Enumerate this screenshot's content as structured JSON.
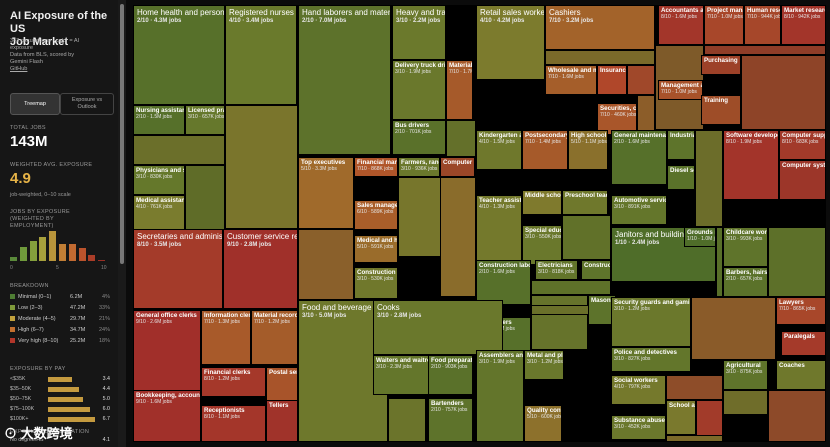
{
  "app": {
    "title_line1": "AI Exposure of the US",
    "title_line2": "Job Market",
    "desc_line1": "342 occupations · color = AI",
    "desc_line2": "exposure",
    "desc_line3": "Data from BLS, scored by",
    "desc_line4": "Gemini Flash",
    "github": "GitHub"
  },
  "view_buttons": {
    "treemap": "Treemap",
    "exposure_line1": "Exposure vs",
    "exposure_line2": "Outlook"
  },
  "stats": {
    "total_label": "TOTAL JOBS",
    "total_value": "143M",
    "avg_label": "WEIGHTED AVG. EXPOSURE",
    "avg_value": "4.9",
    "avg_sub": "job-weighted, 0–10 scale",
    "hist_label_1": "JOBS BY EXPOSURE",
    "hist_label_2": "(WEIGHTED BY",
    "hist_label_3": "EMPLOYMENT)",
    "axis_0": "0",
    "axis_5": "5",
    "axis_10": "10"
  },
  "histogram": [
    {
      "value": 0.6,
      "color": "#5a8a3a"
    },
    {
      "value": 2.0,
      "color": "#6f9a3b"
    },
    {
      "value": 2.9,
      "color": "#84a03c"
    },
    {
      "value": 3.4,
      "color": "#a7a03c"
    },
    {
      "value": 4.3,
      "color": "#b9953b"
    },
    {
      "value": 2.5,
      "color": "#c17e35"
    },
    {
      "value": 2.4,
      "color": "#c26a31"
    },
    {
      "value": 1.9,
      "color": "#bb532c"
    },
    {
      "value": 0.8,
      "color": "#aa3d28"
    },
    {
      "value": 0.2,
      "color": "#992f25"
    }
  ],
  "breakdown_label": "BREAKDOWN",
  "breakdown": [
    {
      "name": "Minimal (0–1)",
      "value": "6.2M",
      "pct": "4%",
      "color": "#4e7d33"
    },
    {
      "name": "Low (2–3)",
      "value": "47.2M",
      "pct": "33%",
      "color": "#7f9a3a"
    },
    {
      "name": "Moderate (4–5)",
      "value": "29.7M",
      "pct": "21%",
      "color": "#c2a23d"
    },
    {
      "name": "High (6–7)",
      "value": "34.7M",
      "pct": "24%",
      "color": "#c3702f"
    },
    {
      "name": "Very high (8–10)",
      "value": "25.2M",
      "pct": "18%",
      "color": "#b2362a"
    }
  ],
  "pay_label": "EXPOSURE BY PAY",
  "pay": [
    {
      "label": "<$35K",
      "value": "3.4",
      "frac": 0.34
    },
    {
      "label": "$35–50K",
      "value": "4.4",
      "frac": 0.44
    },
    {
      "label": "$50–75K",
      "value": "5.0",
      "frac": 0.5
    },
    {
      "label": "$75–100K",
      "value": "6.0",
      "frac": 0.6
    },
    {
      "label": "$100K+",
      "value": "6.7",
      "frac": 0.67
    }
  ],
  "edu_label": "EXPOSURE BY EDUCATION",
  "edu_row": {
    "label": "No degree/HS",
    "value": "4.1"
  },
  "watermark": "大数跨境",
  "treemap_cells": [
    {
      "name": "Home health and personal care aides",
      "info": "2/10 · 4.3M jobs",
      "color": "#57702a",
      "big": true
    },
    {
      "name": "Registered nurses",
      "info": "4/10 · 3.4M jobs",
      "color": "#6a7a2c",
      "big": true
    },
    {
      "name": "Nursing assistants",
      "info": "2/10 · 1.5M jobs",
      "color": "#56702a"
    },
    {
      "name": "Licensed practical nurses",
      "info": "3/10 · 657K jobs",
      "color": "#66782c"
    },
    {
      "name": "Physicians and surgeons",
      "info": "3/10 · 830K jobs",
      "color": "#65782b"
    },
    {
      "name": "Medical assistants",
      "info": "4/10 · 761K jobs",
      "color": "#7a7c2e"
    },
    {
      "name": "Hand laborers and material movers",
      "info": "2/10 · 7.0M jobs",
      "color": "#5d722b",
      "big": true
    },
    {
      "name": "Heavy and tractor-trailer truck drivers",
      "info": "3/10 · 2.2M jobs",
      "color": "#6b792c",
      "big": true
    },
    {
      "name": "Delivery truck drivers",
      "info": "3/10 · 1.9M jobs",
      "color": "#6a782c"
    },
    {
      "name": "Material recording clerks",
      "info": "7/10 · 1.7M jobs",
      "color": "#a65a2a"
    },
    {
      "name": "Bus drivers",
      "info": "2/10 · 701K jobs",
      "color": "#5a712a"
    },
    {
      "name": "Top executives",
      "info": "5/10 · 3.3M jobs",
      "color": "#a06a2b"
    },
    {
      "name": "Financial managers",
      "info": "7/10 · 868K jobs",
      "color": "#b0562a"
    },
    {
      "name": "Farmers, ranchers",
      "info": "3/10 · 936K jobs",
      "color": "#6a782c"
    },
    {
      "name": "Computer",
      "info": "",
      "color": "#9b4728"
    },
    {
      "name": "Sales managers",
      "info": "6/10 · 589K jobs",
      "color": "#a95e2a"
    },
    {
      "name": "Medical and health services managers",
      "info": "5/10 · 591K jobs",
      "color": "#9a6c2b"
    },
    {
      "name": "Construction managers",
      "info": "3/10 · 530K jobs",
      "color": "#70782c"
    },
    {
      "name": "Retail sales workers",
      "info": "4/10 · 4.2M jobs",
      "color": "#7c7b2d",
      "big": true
    },
    {
      "name": "Cashiers",
      "info": "7/10 · 3.2M jobs",
      "color": "#a3632a",
      "big": true
    },
    {
      "name": "Wholesale and manufacturing sales",
      "info": "7/10 · 1.6M jobs",
      "color": "#a55e2a"
    },
    {
      "name": "Insurance",
      "info": "",
      "color": "#b0472a"
    },
    {
      "name": "Securities, commodities",
      "info": "7/10 · 460K jobs",
      "color": "#a9562a"
    },
    {
      "name": "Accountants and auditors",
      "info": "8/10 · 1.6M jobs",
      "color": "#a3362a"
    },
    {
      "name": "Project management",
      "info": "7/10 · 1.0M jobs",
      "color": "#a8472a"
    },
    {
      "name": "Human resources",
      "info": "7/10 · 944K jobs",
      "color": "#a6472a"
    },
    {
      "name": "Market research",
      "info": "8/10 · 942K jobs",
      "color": "#a3352a"
    },
    {
      "name": "Purchasing",
      "info": "",
      "color": "#9d4128"
    },
    {
      "name": "Management analysts",
      "info": "7/10 · 1.0M jobs",
      "color": "#a8522a"
    },
    {
      "name": "Training",
      "info": "",
      "color": "#9e4d28"
    },
    {
      "name": "Kindergarten and elementary",
      "info": "4/10 · 1.5M jobs",
      "color": "#6f782c"
    },
    {
      "name": "Postsecondary teachers",
      "info": "7/10 · 1.4M jobs",
      "color": "#a65a2a"
    },
    {
      "name": "High school teachers",
      "info": "5/10 · 1.1M jobs",
      "color": "#8a702c"
    },
    {
      "name": "General maintenance",
      "info": "2/10 · 1.6M jobs",
      "color": "#56702a"
    },
    {
      "name": "Industrial",
      "info": "",
      "color": "#5e742b"
    },
    {
      "name": "Diesel service",
      "info": "",
      "color": "#5a722a"
    },
    {
      "name": "Automotive service technicians",
      "info": "3/10 · 891K jobs",
      "color": "#64762b"
    },
    {
      "name": "Software developers",
      "info": "8/10 · 1.9M jobs",
      "color": "#a3342a"
    },
    {
      "name": "Computer support",
      "info": "8/10 · 683K jobs",
      "color": "#a23a2a"
    },
    {
      "name": "Computer systems",
      "info": "",
      "color": "#9c3629"
    },
    {
      "name": "Teacher assistants",
      "info": "4/10 · 1.3M jobs",
      "color": "#74792c"
    },
    {
      "name": "Middle school",
      "info": "",
      "color": "#7f7a2d"
    },
    {
      "name": "Preschool teachers",
      "info": "",
      "color": "#6f782c"
    },
    {
      "name": "Special education",
      "info": "3/10 · 550K jobs",
      "color": "#6a782c"
    },
    {
      "name": "Janitors and building cleaners",
      "info": "1/10 · 2.4M jobs",
      "color": "#4f6d29",
      "big": true
    },
    {
      "name": "Grounds maintenance",
      "info": "1/10 · 1.0M jobs",
      "color": "#4f6d29"
    },
    {
      "name": "Childcare workers",
      "info": "3/10 · 993K jobs",
      "color": "#5f742b"
    },
    {
      "name": "Barbers, hairstylists",
      "info": "2/10 · 657K jobs",
      "color": "#5b722a"
    },
    {
      "name": "Secretaries and administrative assistants",
      "info": "8/10 · 3.5M jobs",
      "color": "#a43b2a",
      "big": true
    },
    {
      "name": "Customer service representatives",
      "info": "9/10 · 2.8M jobs",
      "color": "#a0302a",
      "big": true
    },
    {
      "name": "Construction laborers",
      "info": "2/10 · 1.6M jobs",
      "color": "#57702a"
    },
    {
      "name": "Electricians",
      "info": "3/10 · 818K jobs",
      "color": "#63752b"
    },
    {
      "name": "Construction",
      "info": "",
      "color": "#5e742b"
    },
    {
      "name": "Masonry",
      "info": "",
      "color": "#5d732b"
    },
    {
      "name": "Carpenters",
      "info": "2/10 · 1.0M jobs",
      "color": "#57702a"
    },
    {
      "name": "Security guards and gaming",
      "info": "3/10 · 1.2M jobs",
      "color": "#6b782c"
    },
    {
      "name": "Police and detectives",
      "info": "3/10 · 827K jobs",
      "color": "#63762b"
    },
    {
      "name": "Lawyers",
      "info": "7/10 · 865K jobs",
      "color": "#a8472a"
    },
    {
      "name": "Paralegals",
      "info": "",
      "color": "#a53a2a"
    },
    {
      "name": "Social workers",
      "info": "4/10 · 797K jobs",
      "color": "#75792c"
    },
    {
      "name": "School and",
      "info": "",
      "color": "#7a792d"
    },
    {
      "name": "Agricultural",
      "info": "3/10 · 875K jobs",
      "color": "#5f742b"
    },
    {
      "name": "Coaches",
      "info": "",
      "color": "#6f782c"
    },
    {
      "name": "Substance abuse",
      "info": "3/10 · 452K jobs",
      "color": "#6b782c"
    },
    {
      "name": "General office clerks",
      "info": "9/10 · 2.6M jobs",
      "color": "#a12f2a"
    },
    {
      "name": "Information clerks",
      "info": "7/10 · 1.3M jobs",
      "color": "#a85a2a"
    },
    {
      "name": "Material recording",
      "info": "7/10 · 1.2M jobs",
      "color": "#a45c2a"
    },
    {
      "name": "Financial clerks",
      "info": "8/10 · 1.2M jobs",
      "color": "#a5382a"
    },
    {
      "name": "Postal service",
      "info": "",
      "color": "#a8542a"
    },
    {
      "name": "Bookkeeping, accounting",
      "info": "9/10 · 1.6M jobs",
      "color": "#a1302a"
    },
    {
      "name": "Receptionists",
      "info": "8/10 · 1.1M jobs",
      "color": "#a4362a"
    },
    {
      "name": "Tellers",
      "info": "",
      "color": "#a0332a"
    },
    {
      "name": "Food and beverage serving workers",
      "info": "3/10 · 5.0M jobs",
      "color": "#6e782c",
      "big": true
    },
    {
      "name": "Cooks",
      "info": "3/10 · 2.8M jobs",
      "color": "#6a782c",
      "big": true
    },
    {
      "name": "Waiters and waitresses",
      "info": "3/10 · 2.3M jobs",
      "color": "#64762b"
    },
    {
      "name": "Food preparation",
      "info": "2/10 · 903K jobs",
      "color": "#5a712a"
    },
    {
      "name": "Bartenders",
      "info": "2/10 · 757K jobs",
      "color": "#5e732b"
    },
    {
      "name": "Assemblers and fabricators",
      "info": "3/10 · 1.9M jobs",
      "color": "#63752b"
    },
    {
      "name": "Metal and plastic",
      "info": "3/10 · 1.2M jobs",
      "color": "#6a782c"
    },
    {
      "name": "Quality control",
      "info": "5/10 · 600K jobs",
      "color": "#8d712c"
    }
  ]
}
